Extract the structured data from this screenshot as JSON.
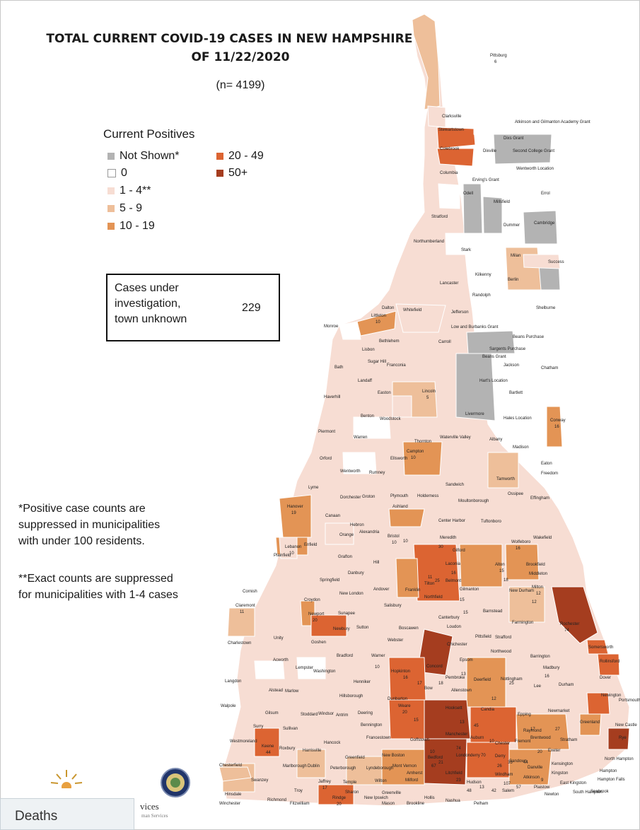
{
  "title": "TOTAL CURRENT COVID-19 CASES IN NEW HAMPSHIRE AS OF 11/22/2020",
  "subtitle": "(n= 4199)",
  "legend": {
    "title": "Current Positives",
    "items": [
      {
        "label": "Not Shown*",
        "color": "#b3b3b3"
      },
      {
        "label": "0",
        "color": "#ffffff"
      },
      {
        "label": "1 - 4**",
        "color": "#f7ddd3"
      },
      {
        "label": "5 - 9",
        "color": "#eebf9a"
      },
      {
        "label": "10 - 19",
        "color": "#e39455"
      },
      {
        "label": "20 - 49",
        "color": "#dc6432"
      },
      {
        "label": "50+",
        "color": "#a53d1f"
      }
    ]
  },
  "investigation": {
    "label": "Cases under\ninvestigation,\ntown unknown",
    "value": "229"
  },
  "notes": [
    "*Positive case counts are\nsuppressed in municipalities\nwith under 100 residents.",
    "**Exact counts are suppressed\nfor municipalities with 1-4 cases"
  ],
  "map": {
    "towns": [
      {
        "name": "Pittsburg",
        "value": "6"
      },
      {
        "name": "Clarksville"
      },
      {
        "name": "Atkinson and Gilmanton Academy Grant"
      },
      {
        "name": "Stewartstown"
      },
      {
        "name": "Dixs Grant"
      },
      {
        "name": "Colebrook"
      },
      {
        "name": "Dixville"
      },
      {
        "name": "Second College Grant"
      },
      {
        "name": "Wentworth Location"
      },
      {
        "name": "Columbia"
      },
      {
        "name": "Erving's Grant"
      },
      {
        "name": "Odell"
      },
      {
        "name": "Errol"
      },
      {
        "name": "Millsfield"
      },
      {
        "name": "Stratford"
      },
      {
        "name": "Dummer"
      },
      {
        "name": "Cambridge"
      },
      {
        "name": "Northumberland"
      },
      {
        "name": "Stark"
      },
      {
        "name": "Milan"
      },
      {
        "name": "Success"
      },
      {
        "name": "Kilkenny"
      },
      {
        "name": "Lancaster"
      },
      {
        "name": "Berlin"
      },
      {
        "name": "Randolph"
      },
      {
        "name": "Dalton"
      },
      {
        "name": "Whitefield"
      },
      {
        "name": "Jefferson"
      },
      {
        "name": "Shelburne"
      },
      {
        "name": "Littleton",
        "value": "10"
      },
      {
        "name": "Low and Burbanks Grant"
      },
      {
        "name": "Beans Purchase"
      },
      {
        "name": "Monroe"
      },
      {
        "name": "Bethlehem"
      },
      {
        "name": "Carroll"
      },
      {
        "name": "Sargents Purchase"
      },
      {
        "name": "Beans Grant"
      },
      {
        "name": "Lisbon"
      },
      {
        "name": "Sugar Hill"
      },
      {
        "name": "Franconia"
      },
      {
        "name": "Jackson"
      },
      {
        "name": "Chatham"
      },
      {
        "name": "Bath"
      },
      {
        "name": "Landaff"
      },
      {
        "name": "Hart's Location"
      },
      {
        "name": "Easton"
      },
      {
        "name": "Lincoln",
        "value": "5"
      },
      {
        "name": "Haverhill"
      },
      {
        "name": "Bartlett"
      },
      {
        "name": "Benton"
      },
      {
        "name": "Woodstock"
      },
      {
        "name": "Livermore"
      },
      {
        "name": "Hales Location"
      },
      {
        "name": "Conway",
        "value": "16"
      },
      {
        "name": "Piermont"
      },
      {
        "name": "Warren"
      },
      {
        "name": "Waterville Valley"
      },
      {
        "name": "Thornton"
      },
      {
        "name": "Albany"
      },
      {
        "name": "Madison"
      },
      {
        "name": "Orford"
      },
      {
        "name": "Ellsworth"
      },
      {
        "name": "Campton",
        "value": "10"
      },
      {
        "name": "Eaton"
      },
      {
        "name": "Wentworth"
      },
      {
        "name": "Rumney"
      },
      {
        "name": "Freedom"
      },
      {
        "name": "Lyme"
      },
      {
        "name": "Sandwich"
      },
      {
        "name": "Tamworth"
      },
      {
        "name": "Dorchester"
      },
      {
        "name": "Groton"
      },
      {
        "name": "Plymouth"
      },
      {
        "name": "Holderness"
      },
      {
        "name": "Moultonborough"
      },
      {
        "name": "Ossipee"
      },
      {
        "name": "Effingham"
      },
      {
        "name": "Hanover",
        "value": "19"
      },
      {
        "name": "Canaan"
      },
      {
        "name": "Ashland"
      },
      {
        "name": "Hebron"
      },
      {
        "name": "Center Harbor"
      },
      {
        "name": "Tuftonboro"
      },
      {
        "name": "Lebanon",
        "value": "10"
      },
      {
        "name": "Enfield"
      },
      {
        "name": "Alexandria"
      },
      {
        "name": "Orange"
      },
      {
        "name": "Bristol",
        "value": "10"
      },
      {
        "name": "Meredith"
      },
      {
        "name": "Wolfeboro",
        "value": "16"
      },
      {
        "name": "Wakefield"
      },
      {
        "name": "Plainfield"
      },
      {
        "name": "Grafton"
      },
      {
        "name": "Gilford"
      },
      {
        "name": "Brookfield"
      },
      {
        "name": "Hill"
      },
      {
        "name": "Danbury"
      },
      {
        "name": "Alton",
        "value": "15"
      },
      {
        "name": "Middleton"
      },
      {
        "name": "Springfield"
      },
      {
        "name": "Laconia"
      },
      {
        "name": "Belmont"
      },
      {
        "name": "Gilmanton"
      },
      {
        "name": "Milton",
        "value": "12"
      },
      {
        "name": "Cornish"
      },
      {
        "name": "New London"
      },
      {
        "name": "Andover"
      },
      {
        "name": "Franklin"
      },
      {
        "name": "Tilton"
      },
      {
        "name": "New Durham"
      },
      {
        "name": "Croydon"
      },
      {
        "name": "Claremont",
        "value": "11"
      },
      {
        "name": "Newport",
        "value": "20"
      },
      {
        "name": "Sunapee"
      },
      {
        "name": "Salisbury"
      },
      {
        "name": "Northfield"
      },
      {
        "name": "Canterbury"
      },
      {
        "name": "Barnstead"
      },
      {
        "name": "Farmington"
      },
      {
        "name": "Rochester",
        "value": "74"
      },
      {
        "name": "Newbury"
      },
      {
        "name": "Sutton"
      },
      {
        "name": "Boscawen"
      },
      {
        "name": "Loudon"
      },
      {
        "name": "Strafford"
      },
      {
        "name": "Charlestown"
      },
      {
        "name": "Unity"
      },
      {
        "name": "Goshen"
      },
      {
        "name": "Webster"
      },
      {
        "name": "Pittsfield"
      },
      {
        "name": "Somersworth"
      },
      {
        "name": "Bradford"
      },
      {
        "name": "Warner"
      },
      {
        "name": "Chichester"
      },
      {
        "name": "Northwood"
      },
      {
        "name": "Barrington"
      },
      {
        "name": "Rollinsford"
      },
      {
        "name": "Acworth"
      },
      {
        "name": "Lempster"
      },
      {
        "name": "Washington"
      },
      {
        "name": "Hopkinton"
      },
      {
        "name": "Concord"
      },
      {
        "name": "Epsom"
      },
      {
        "name": "Madbury"
      },
      {
        "name": "Dover"
      },
      {
        "name": "Langdon"
      },
      {
        "name": "Henniker"
      },
      {
        "name": "Pembroke"
      },
      {
        "name": "Deerfield"
      },
      {
        "name": "Nottingham"
      },
      {
        "name": "Lee"
      },
      {
        "name": "Durham"
      },
      {
        "name": "Newington"
      },
      {
        "name": "Alstead"
      },
      {
        "name": "Marlow"
      },
      {
        "name": "Hillsborough"
      },
      {
        "name": "Bow"
      },
      {
        "name": "Allenstown"
      },
      {
        "name": "Dunbarton"
      },
      {
        "name": "Portsmouth"
      },
      {
        "name": "Walpole"
      },
      {
        "name": "Stoddard"
      },
      {
        "name": "Windsor"
      },
      {
        "name": "Deering"
      },
      {
        "name": "Weare",
        "value": "20"
      },
      {
        "name": "Hooksett"
      },
      {
        "name": "Candia"
      },
      {
        "name": "Epping"
      },
      {
        "name": "Newmarket"
      },
      {
        "name": "Gilsum"
      },
      {
        "name": "Antrim"
      },
      {
        "name": "Bennington"
      },
      {
        "name": "Greenland"
      },
      {
        "name": "New Castle"
      },
      {
        "name": "Surry"
      },
      {
        "name": "Sullivan"
      },
      {
        "name": "Francestown"
      },
      {
        "name": "Goffstown"
      },
      {
        "name": "Manchester"
      },
      {
        "name": "Auburn"
      },
      {
        "name": "Chester"
      },
      {
        "name": "Fremont"
      },
      {
        "name": "Brentwood"
      },
      {
        "name": "Rye"
      },
      {
        "name": "Westmoreland"
      },
      {
        "name": "Hancock"
      },
      {
        "name": "Raymond"
      },
      {
        "name": "Stratham"
      },
      {
        "name": "Exeter"
      },
      {
        "name": "Keene",
        "value": "44"
      },
      {
        "name": "Roxbury"
      },
      {
        "name": "Harrisville"
      },
      {
        "name": "Greenfield"
      },
      {
        "name": "New Boston"
      },
      {
        "name": "Bedford"
      },
      {
        "name": "Londonderry"
      },
      {
        "name": "Derry"
      },
      {
        "name": "Sandown"
      },
      {
        "name": "Danville"
      },
      {
        "name": "Kensington"
      },
      {
        "name": "North Hampton"
      },
      {
        "name": "Chesterfield"
      },
      {
        "name": "Marlborough"
      },
      {
        "name": "Dublin"
      },
      {
        "name": "Peterborough"
      },
      {
        "name": "Lyndeborough"
      },
      {
        "name": "Mont Vernon"
      },
      {
        "name": "Amherst"
      },
      {
        "name": "Litchfield"
      },
      {
        "name": "Hampton"
      },
      {
        "name": "Hampton Falls"
      },
      {
        "name": "Swanzey"
      },
      {
        "name": "Temple"
      },
      {
        "name": "Hinsdale"
      },
      {
        "name": "Troy"
      },
      {
        "name": "Jaffrey",
        "value": "17"
      },
      {
        "name": "Wilton"
      },
      {
        "name": "Milford"
      },
      {
        "name": "Hudson"
      },
      {
        "name": "Windham"
      },
      {
        "name": "Atkinson"
      },
      {
        "name": "Plaistow"
      },
      {
        "name": "Kingston"
      },
      {
        "name": "East Kingston"
      },
      {
        "name": "South Hampton"
      },
      {
        "name": "Seabrook"
      },
      {
        "name": "Newton"
      },
      {
        "name": "Richmond"
      },
      {
        "name": "Rindge",
        "value": "20"
      },
      {
        "name": "Sharon"
      },
      {
        "name": "New Ipswich"
      },
      {
        "name": "Greenville"
      },
      {
        "name": "Salem"
      },
      {
        "name": "Pelham"
      },
      {
        "name": "Winchester"
      },
      {
        "name": "Fitzwilliam"
      },
      {
        "name": "Mason"
      },
      {
        "name": "Brookline"
      },
      {
        "name": "Hollis"
      },
      {
        "name": "Nashua"
      }
    ],
    "value_labels": [
      "10",
      "30",
      "25",
      "16",
      "11",
      "15",
      "18",
      "12",
      "15",
      "10",
      "16",
      "17",
      "18",
      "13",
      "12",
      "25",
      "16",
      "15",
      "13",
      "45",
      "27",
      "20",
      "10",
      "21",
      "74",
      "70",
      "35",
      "26",
      "44",
      "48",
      "67",
      "107",
      "13",
      "42",
      "57",
      "23",
      "10",
      "17",
      "9"
    ]
  },
  "footer": {
    "services": "vices",
    "services_sub": "man Services",
    "deaths_tab": "Deaths"
  }
}
